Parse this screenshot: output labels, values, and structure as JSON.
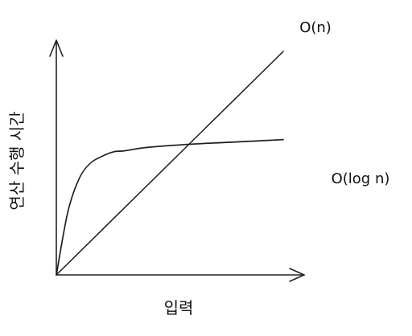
{
  "chart_data": {
    "type": "line",
    "title": "",
    "xlabel": "입력",
    "ylabel": "연산 수행 시간",
    "grid": false,
    "legend": "none",
    "xlim": [
      0,
      10
    ],
    "ylim": [
      0,
      10
    ],
    "series": [
      {
        "name": "O(n)",
        "x": [
          0,
          10
        ],
        "y": [
          0,
          10
        ]
      },
      {
        "name": "O(log n)",
        "x": [
          0,
          0.5,
          1,
          1.5,
          2,
          2.5,
          3,
          4,
          6,
          8,
          10
        ],
        "y": [
          0,
          2.8,
          4.3,
          5.0,
          5.3,
          5.5,
          5.55,
          5.7,
          5.85,
          5.95,
          6.05
        ]
      }
    ]
  }
}
